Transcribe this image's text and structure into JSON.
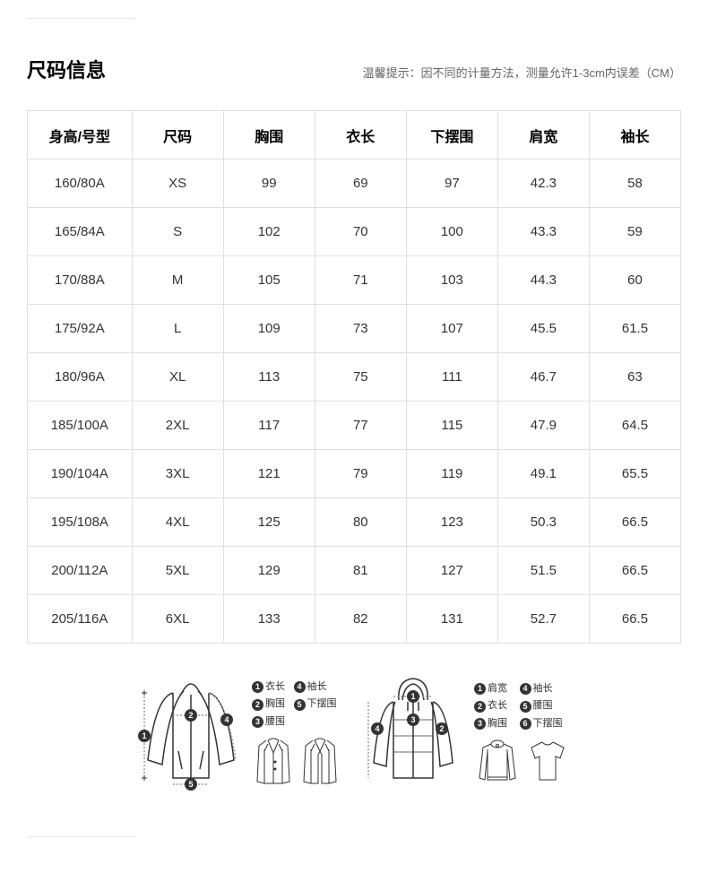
{
  "header": {
    "title": "尺码信息",
    "tip": "温馨提示：因不同的计量方法，测量允许1-3cm内误差（CM）"
  },
  "table": {
    "columns": [
      "身高/号型",
      "尺码",
      "胸围",
      "衣长",
      "下摆围",
      "肩宽",
      "袖长"
    ],
    "rows": [
      [
        "160/80A",
        "XS",
        "99",
        "69",
        "97",
        "42.3",
        "58"
      ],
      [
        "165/84A",
        "S",
        "102",
        "70",
        "100",
        "43.3",
        "59"
      ],
      [
        "170/88A",
        "M",
        "105",
        "71",
        "103",
        "44.3",
        "60"
      ],
      [
        "175/92A",
        "L",
        "109",
        "73",
        "107",
        "45.5",
        "61.5"
      ],
      [
        "180/96A",
        "XL",
        "113",
        "75",
        "111",
        "46.7",
        "63"
      ],
      [
        "185/100A",
        "2XL",
        "117",
        "77",
        "115",
        "47.9",
        "64.5"
      ],
      [
        "190/104A",
        "3XL",
        "121",
        "79",
        "119",
        "49.1",
        "65.5"
      ],
      [
        "195/108A",
        "4XL",
        "125",
        "80",
        "123",
        "50.3",
        "66.5"
      ],
      [
        "200/112A",
        "5XL",
        "129",
        "81",
        "127",
        "51.5",
        "66.5"
      ],
      [
        "205/116A",
        "6XL",
        "133",
        "82",
        "131",
        "52.7",
        "66.5"
      ]
    ]
  },
  "diagrams": {
    "left": {
      "legend": [
        {
          "num": "1",
          "label": "衣长"
        },
        {
          "num": "4",
          "label": "袖长"
        },
        {
          "num": "2",
          "label": "胸围"
        },
        {
          "num": "5",
          "label": "下摆围"
        },
        {
          "num": "3",
          "label": "腰围"
        }
      ]
    },
    "right": {
      "legend": [
        {
          "num": "1",
          "label": "肩宽"
        },
        {
          "num": "4",
          "label": "袖长"
        },
        {
          "num": "2",
          "label": "衣长"
        },
        {
          "num": "5",
          "label": "腰围"
        },
        {
          "num": "3",
          "label": "胸围"
        },
        {
          "num": "6",
          "label": "下摆围"
        }
      ]
    }
  },
  "colors": {
    "border": "#e0e0e0",
    "text": "#333333",
    "muted": "#666666",
    "bg": "#ffffff",
    "stroke": "#333333"
  }
}
